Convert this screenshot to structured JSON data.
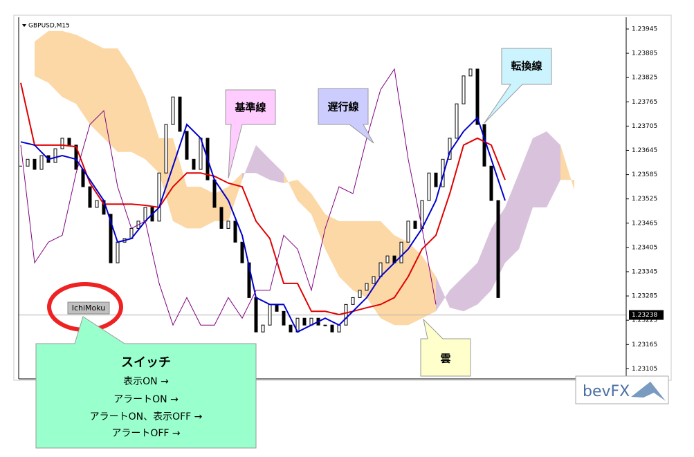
{
  "chart_data": {
    "type": "ichimoku",
    "symbol": "GBPUSD,M15",
    "xlim": [
      -0.15,
      43.75
    ],
    "ylim": [
      1.2308,
      1.23974
    ],
    "yticks": [
      1.23945,
      1.23885,
      1.23825,
      1.23765,
      1.23705,
      1.23645,
      1.23585,
      1.23525,
      1.23465,
      1.23405,
      1.23345,
      1.23285,
      1.23225,
      1.23165,
      1.23105
    ],
    "current_price": 1.23238,
    "x": [
      0,
      1,
      2,
      3,
      4,
      5,
      6,
      7,
      8,
      9,
      10,
      11,
      12,
      13,
      14,
      15,
      16,
      17,
      18,
      19,
      20,
      21,
      22,
      23,
      24,
      25,
      26,
      27,
      28,
      29,
      30,
      31,
      32,
      33,
      34,
      35,
      36,
      37,
      38,
      39,
      40
    ],
    "series": [
      {
        "color": "#e00000",
        "values": [
          1.23812,
          1.23658,
          1.23658,
          1.23658,
          1.23654,
          1.23564,
          1.23512,
          1.23512,
          1.23512,
          1.23509,
          1.23504,
          1.23555,
          1.23589,
          1.23589,
          1.23581,
          1.23564,
          1.23555,
          1.2347,
          1.23427,
          1.23316,
          1.23316,
          1.23247,
          1.23247,
          1.23239,
          1.23247,
          1.23256,
          1.23264,
          1.23281,
          1.23333,
          1.23401,
          1.23435,
          1.23538,
          1.23658,
          1.23675,
          1.23658,
          1.23572,
          null,
          null,
          null,
          null,
          null
        ]
      },
      {
        "color": "#0000cc",
        "values": [
          1.23666,
          1.23658,
          1.23623,
          1.23632,
          1.23623,
          1.23572,
          1.23521,
          1.23418,
          1.23427,
          1.2347,
          1.23504,
          1.23606,
          1.23709,
          1.23675,
          1.23572,
          1.23521,
          1.23435,
          1.23281,
          1.23264,
          1.23264,
          1.23196,
          1.23213,
          1.2323,
          1.23213,
          1.23247,
          1.23281,
          1.23333,
          1.23367,
          1.23401,
          1.23452,
          1.23521,
          1.23641,
          1.23692,
          1.23726,
          1.23623,
          1.23521,
          null,
          null,
          null,
          null,
          null
        ]
      },
      {
        "color": "#800080",
        "values": [
          1.23658,
          1.23367,
          1.23418,
          1.23435,
          1.23589,
          1.23709,
          1.23743,
          1.23555,
          1.23452,
          1.2347,
          1.23316,
          1.23213,
          1.23281,
          1.23213,
          1.23213,
          1.23281,
          1.2323,
          1.23299,
          1.23299,
          1.23435,
          1.23401,
          1.23299,
          1.23452,
          1.23555,
          1.23538,
          1.23675,
          1.23795,
          1.23846,
          1.23623,
          1.23452,
          1.23264,
          null,
          null,
          null,
          null,
          null,
          null,
          null,
          null,
          null,
          null
        ]
      }
    ],
    "cloud": {
      "up_color": "#fbd8a6",
      "down_color": "#d9c2dc",
      "span_a": [
        null,
        1.23914,
        1.2394,
        1.2394,
        1.23931,
        1.23914,
        1.23897,
        1.23897,
        1.23846,
        1.23777,
        1.23675,
        1.23675,
        1.23555,
        1.23555,
        1.23538,
        1.23555,
        1.23589,
        1.23589,
        1.23572,
        1.23564,
        1.23572,
        1.23538,
        1.23487,
        1.2347,
        1.2347,
        1.2347,
        1.2347,
        1.23435,
        1.23418,
        1.23384,
        1.23333,
        1.23256,
        1.23247,
        1.23264,
        1.23299,
        1.23367,
        1.23401,
        1.23504,
        1.23504,
        1.23572,
        1.23572
      ],
      "span_b": [
        null,
        1.23829,
        1.23812,
        1.23777,
        1.2376,
        1.23709,
        1.23675,
        1.23641,
        1.23641,
        1.23623,
        1.23589,
        1.2347,
        1.23452,
        1.23452,
        1.2347,
        1.2347,
        1.23572,
        1.23658,
        1.23623,
        1.23589,
        1.23521,
        1.23487,
        1.23401,
        1.23333,
        1.23299,
        1.23281,
        1.2323,
        1.23213,
        1.23213,
        1.2323,
        1.23247,
        1.23299,
        1.23333,
        1.23367,
        1.23452,
        1.23504,
        1.23589,
        1.23675,
        1.23692,
        1.23658,
        1.23547
      ]
    },
    "candles": {
      "color": "#000000",
      "x": [
        0,
        0.5,
        1,
        1.5,
        2,
        2.5,
        3,
        3.5,
        4,
        4.5,
        5,
        5.5,
        6,
        6.5,
        7,
        7.5,
        8,
        8.5,
        9,
        9.5,
        10,
        10.5,
        11,
        11.5,
        12,
        12.5,
        13,
        13.5,
        14,
        14.5,
        15,
        15.5,
        16,
        16.5,
        17,
        17.5,
        18,
        18.5,
        19,
        19.5,
        20,
        20.5,
        21,
        21.5,
        22,
        22.5,
        23,
        23.5,
        24,
        24.5,
        25,
        25.5,
        26,
        26.5,
        27,
        27.5,
        28,
        28.5,
        29,
        29.5,
        30,
        30.5,
        31,
        31.5,
        32,
        32.5,
        33,
        33.5,
        34,
        34.5
      ],
      "close": [
        1.23606,
        1.23623,
        1.23598,
        1.23632,
        1.23615,
        1.23649,
        1.23675,
        1.23658,
        1.23598,
        1.23555,
        1.23504,
        1.23521,
        1.23487,
        1.23367,
        1.23418,
        1.23427,
        1.23452,
        1.2347,
        1.23504,
        1.2347,
        1.23589,
        1.23709,
        1.23777,
        1.23692,
        1.23623,
        1.23598,
        1.23675,
        1.23572,
        1.23504,
        1.23452,
        1.2347,
        1.23418,
        1.23367,
        1.23281,
        1.23196,
        1.23213,
        1.23264,
        1.23247,
        1.23213,
        1.23196,
        1.2323,
        1.23213,
        1.2323,
        1.23213,
        1.23213,
        1.23196,
        1.23213,
        1.23264,
        1.23281,
        1.23299,
        1.23316,
        1.23333,
        1.23367,
        1.23384,
        1.23367,
        1.23418,
        1.2347,
        1.23452,
        1.23521,
        1.23589,
        1.23555,
        1.23623,
        1.23675,
        1.2376,
        1.23829,
        1.23846,
        1.23709,
        1.23606,
        1.23521,
        1.23281
      ]
    }
  },
  "annotations": {
    "kijun": "基準線",
    "chikou": "遅行線",
    "tenkan": "転換線",
    "kumo": "雲",
    "button": "IchiMoku",
    "switch": {
      "title": "スイッチ",
      "lines": [
        "表示ON →",
        "アラートON →",
        "アラートON、表示OFF →",
        "アラートOFF →"
      ]
    },
    "logo": "bevFX"
  }
}
